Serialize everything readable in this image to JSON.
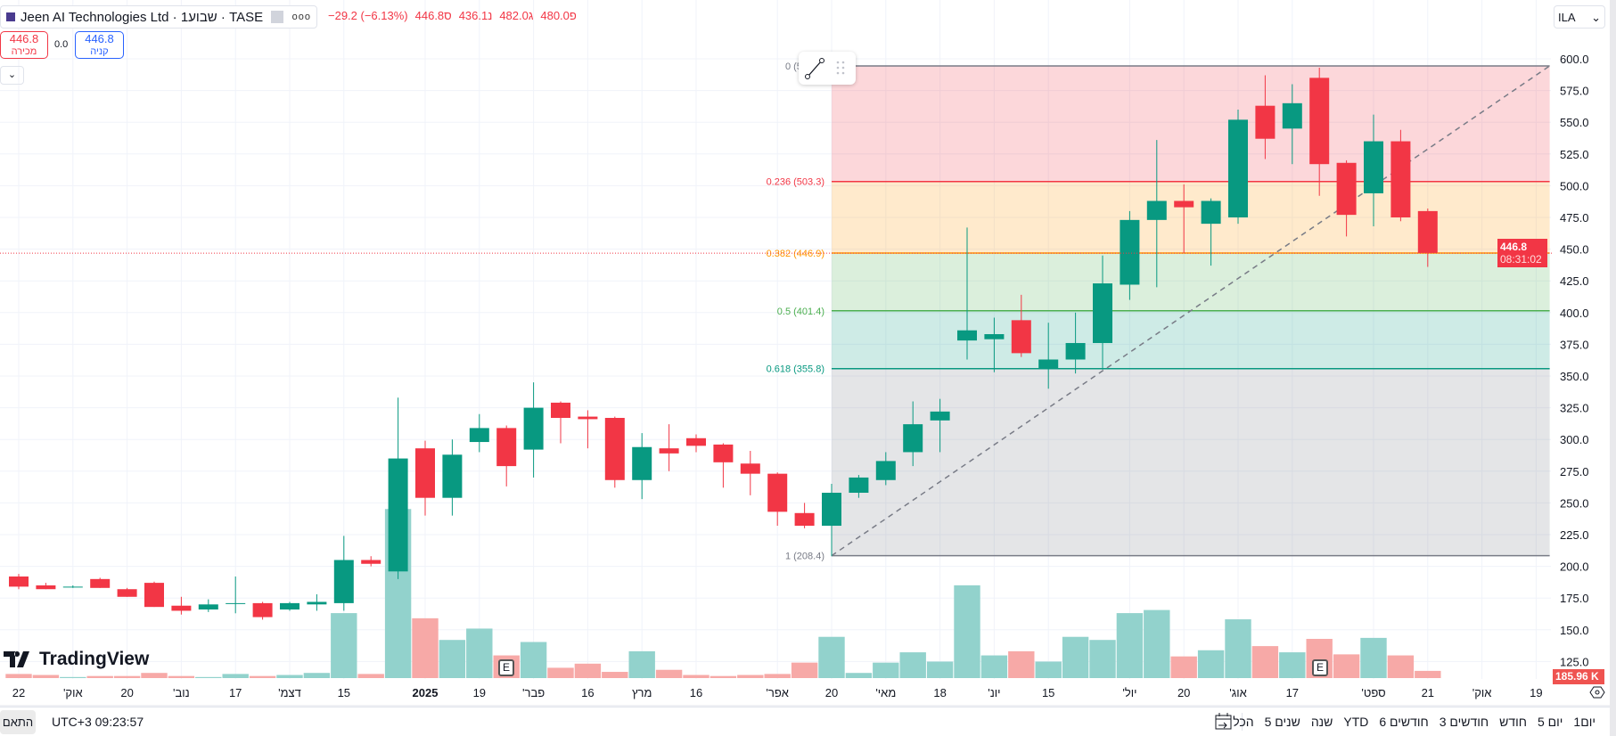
{
  "header": {
    "symbol": "Jeen AI Technologies Ltd · 1שבוע · TASE",
    "more_icon": "dots-icon",
    "ohlc": [
      {
        "label": "פ",
        "value": "480.0"
      },
      {
        "label": "ג",
        "value": "482.0"
      },
      {
        "label": "נ",
        "value": "436.1"
      },
      {
        "label": "ס",
        "value": "446.8"
      },
      {
        "label": "",
        "value": "−29.2 (−6.13%)"
      }
    ],
    "sell": {
      "price": "446.8",
      "label": "מכירה"
    },
    "buy": {
      "price": "446.8",
      "label": "קניה"
    },
    "spread": "0.0",
    "currency": "ILA"
  },
  "price_label": {
    "price": "446.8",
    "countdown": "08:31:02"
  },
  "volume_label": "185.96 K",
  "watermark": "TradingView",
  "earnings_marker": "E",
  "bottom": {
    "fit": "התאם",
    "clock": "UTC+3 09:23:57",
    "ranges": [
      "הכל",
      "5 שנים",
      "שנה",
      "YTD",
      "6 חודשים",
      "3 חודשים",
      "חודש",
      "5 יום",
      "יום1"
    ]
  },
  "chart_data": {
    "type": "candlestick",
    "colors": {
      "up": "#089981",
      "down": "#f23645",
      "vol_up": "#92d2cc",
      "vol_down": "#f7a9a7"
    },
    "yticks": [
      125,
      150,
      175,
      200,
      225,
      250,
      275,
      300,
      325,
      350,
      375,
      400,
      425,
      450,
      475,
      500,
      525,
      550,
      575,
      600
    ],
    "ohlc": [
      [
        192,
        194,
        182,
        184
      ],
      [
        185,
        187,
        182,
        182
      ],
      [
        184,
        185,
        183,
        184
      ],
      [
        190,
        191,
        183,
        183
      ],
      [
        182,
        183,
        176,
        176
      ],
      [
        187,
        188,
        168,
        168
      ],
      [
        169,
        176,
        162,
        165
      ],
      [
        166,
        174,
        164,
        170
      ],
      [
        171,
        192,
        163,
        171
      ],
      [
        171,
        172,
        158,
        160
      ],
      [
        166,
        172,
        165,
        171
      ],
      [
        170,
        178,
        165,
        172
      ],
      [
        171,
        224,
        165,
        205
      ],
      [
        205,
        208,
        200,
        202
      ],
      [
        196,
        333,
        190,
        285
      ],
      [
        293,
        299,
        240,
        254
      ],
      [
        254,
        300,
        240,
        288
      ],
      [
        298,
        320,
        290,
        309
      ],
      [
        309,
        311,
        263,
        279
      ],
      [
        292,
        345,
        270,
        325
      ],
      [
        329,
        330,
        297,
        317
      ],
      [
        318,
        323,
        293,
        316
      ],
      [
        317,
        318,
        262,
        268
      ],
      [
        268,
        305,
        253,
        294
      ],
      [
        293,
        312,
        275,
        289
      ],
      [
        301,
        304,
        290,
        295
      ],
      [
        296,
        297,
        262,
        282
      ],
      [
        281,
        291,
        256,
        273
      ],
      [
        273,
        274,
        232,
        243
      ],
      [
        242,
        250,
        230,
        232
      ],
      [
        232,
        265,
        208,
        258
      ],
      [
        258,
        272,
        254,
        270
      ],
      [
        268,
        290,
        264,
        283
      ],
      [
        290,
        330,
        279,
        312
      ],
      [
        315,
        332,
        290,
        322
      ],
      [
        378,
        467,
        363,
        386
      ],
      [
        379,
        396,
        353,
        383
      ],
      [
        394,
        414,
        365,
        368
      ],
      [
        356,
        392,
        340,
        363
      ],
      [
        363,
        400,
        352,
        376
      ],
      [
        376,
        445,
        355,
        423
      ],
      [
        422,
        480,
        410,
        473
      ],
      [
        473,
        536,
        420,
        488
      ],
      [
        488,
        501,
        447,
        483
      ],
      [
        470,
        490,
        437,
        488
      ],
      [
        475,
        560,
        470,
        552
      ],
      [
        563,
        587,
        521,
        537
      ],
      [
        545,
        580,
        517,
        565
      ],
      [
        585,
        593,
        492,
        517
      ],
      [
        518,
        520,
        460,
        477
      ],
      [
        494,
        556,
        468,
        535
      ],
      [
        535,
        544,
        472,
        475
      ],
      [
        480,
        482,
        436,
        447
      ]
    ],
    "volume_k": [
      106,
      80,
      27,
      53,
      53,
      133,
      53,
      27,
      106,
      53,
      80,
      133,
      1676,
      106,
      4362,
      1543,
      984,
      1277,
      585,
      931,
      266,
      372,
      160,
      692,
      213,
      80,
      53,
      80,
      106,
      399,
      1064,
      133,
      399,
      665,
      426,
      2394,
      585,
      692,
      426,
      1064,
      984,
      1676,
      1756,
      559,
      718,
      1516,
      825,
      665,
      1011,
      612,
      1037,
      585,
      186
    ],
    "xlabels": [
      {
        "i": 0,
        "t": "22"
      },
      {
        "i": 2,
        "t": "'אוק"
      },
      {
        "i": 4,
        "t": "20"
      },
      {
        "i": 6,
        "t": "'נוב"
      },
      {
        "i": 8,
        "t": "17"
      },
      {
        "i": 10,
        "t": "'דצמ"
      },
      {
        "i": 12,
        "t": "15"
      },
      {
        "i": 15,
        "t": "2025",
        "bold": true
      },
      {
        "i": 17,
        "t": "19"
      },
      {
        "i": 19,
        "t": "'פבר"
      },
      {
        "i": 21,
        "t": "16"
      },
      {
        "i": 23,
        "t": "מרץ"
      },
      {
        "i": 25,
        "t": "16"
      },
      {
        "i": 28,
        "t": "'אפר"
      },
      {
        "i": 30,
        "t": "20"
      },
      {
        "i": 32,
        "t": "'מאי"
      },
      {
        "i": 34,
        "t": "18"
      },
      {
        "i": 36,
        "t": "'יונ"
      },
      {
        "i": 38,
        "t": "15"
      },
      {
        "i": 41,
        "t": "'יול"
      },
      {
        "i": 43,
        "t": "20"
      },
      {
        "i": 45,
        "t": "'אוג"
      },
      {
        "i": 47,
        "t": "17"
      },
      {
        "i": 50,
        "t": "'ספט"
      },
      {
        "i": 52,
        "t": "21"
      },
      {
        "i": 54,
        "t": "'אוק"
      },
      {
        "i": 56,
        "t": "19"
      }
    ],
    "earnings_at": [
      18,
      48
    ],
    "last_price": 446.8,
    "fib": {
      "start_index": 30,
      "end_index": 56.5,
      "from": 208.4,
      "to": 594.4,
      "levels": [
        {
          "ratio": 0,
          "price": 594.4,
          "label": "0 (594.4)",
          "color": "#787b86"
        },
        {
          "ratio": 0.236,
          "price": 503.3,
          "label": "0.236 (503.3)",
          "color": "#f23645"
        },
        {
          "ratio": 0.382,
          "price": 446.9,
          "label": "0.382 (446.9)",
          "color": "#ff9800"
        },
        {
          "ratio": 0.5,
          "price": 401.4,
          "label": "0.5 (401.4)",
          "color": "#4caf50"
        },
        {
          "ratio": 0.618,
          "price": 355.8,
          "label": "0.618 (355.8)",
          "color": "#089981"
        },
        {
          "ratio": 1,
          "price": 208.4,
          "label": "1 (208.4)",
          "color": "#787b86"
        }
      ]
    }
  }
}
